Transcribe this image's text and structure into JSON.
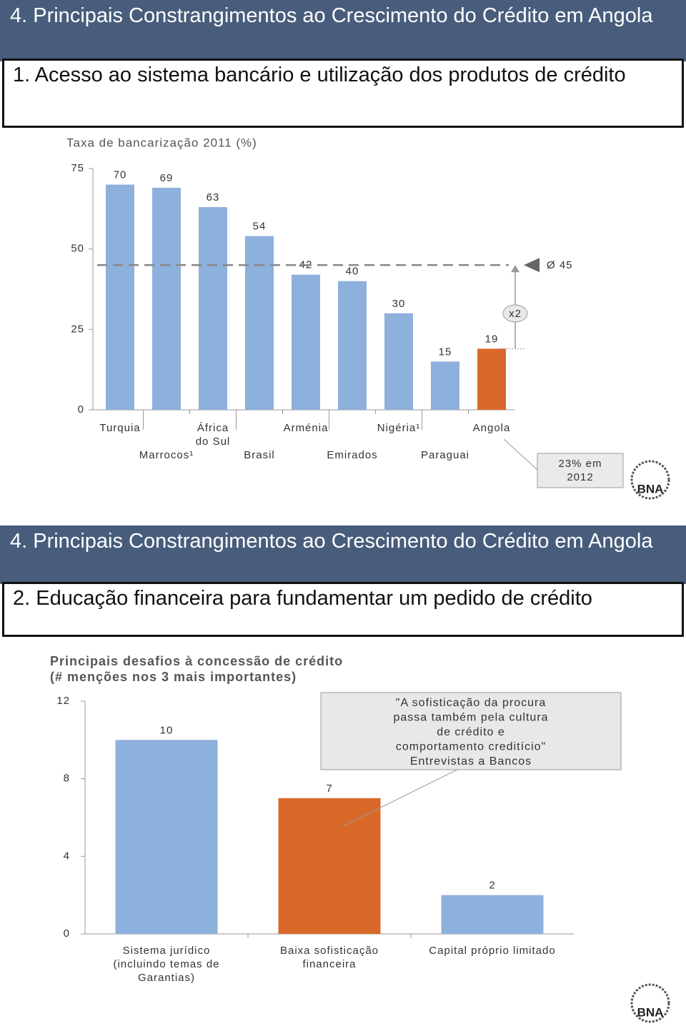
{
  "slides": [
    {
      "header": "4. Principais Constrangimentos ao Crescimento do Crédito em Angola",
      "subheader": "1. Acesso ao sistema bancário e utilização dos produtos de crédito",
      "logo": "BNA"
    },
    {
      "header": "4. Principais Constrangimentos ao Crescimento do Crédito em Angola",
      "subheader": "2. Educação financeira para fundamentar um pedido de crédito",
      "logo": "BNA"
    }
  ],
  "chart_data": [
    {
      "type": "bar",
      "title": "Taxa de bancarização 2011 (%)",
      "categories": [
        "Turquia",
        "Marrocos¹",
        "África do Sul",
        "Brasil",
        "Arménia",
        "Emirados",
        "Nigéria¹",
        "Paraguai",
        "Angola"
      ],
      "values": [
        70,
        69,
        63,
        54,
        42,
        40,
        30,
        15,
        19
      ],
      "colors": [
        "#8eb0dc",
        "#8eb0dc",
        "#8eb0dc",
        "#8eb0dc",
        "#8eb0dc",
        "#8eb0dc",
        "#8eb0dc",
        "#8eb0dc",
        "#d9692a"
      ],
      "ylim": [
        0,
        75
      ],
      "yticks": [
        0,
        25,
        50,
        75
      ],
      "grid": false,
      "reference_line": {
        "value": 45,
        "label": "Ø 45"
      },
      "annotations": [
        "x2",
        "23% em 2012"
      ]
    },
    {
      "type": "bar",
      "title": "Principais desafios à concessão de crédito",
      "subtitle": "(# menções nos 3 mais importantes)",
      "categories": [
        "Sistema jurídico (incluindo temas de Garantias)",
        "Baixa sofisticação financeira",
        "Capital próprio limitado"
      ],
      "values": [
        10,
        7,
        2
      ],
      "colors": [
        "#8eb0dc",
        "#d9692a",
        "#8eb0dc"
      ],
      "ylim": [
        0,
        12
      ],
      "yticks": [
        0,
        4,
        8,
        12
      ],
      "grid": false,
      "annotation": [
        "\"A sofisticação da procura",
        "passa também pela cultura",
        "de crédito e",
        "comportamento creditício\"",
        "Entrevistas a Bancos"
      ]
    }
  ]
}
